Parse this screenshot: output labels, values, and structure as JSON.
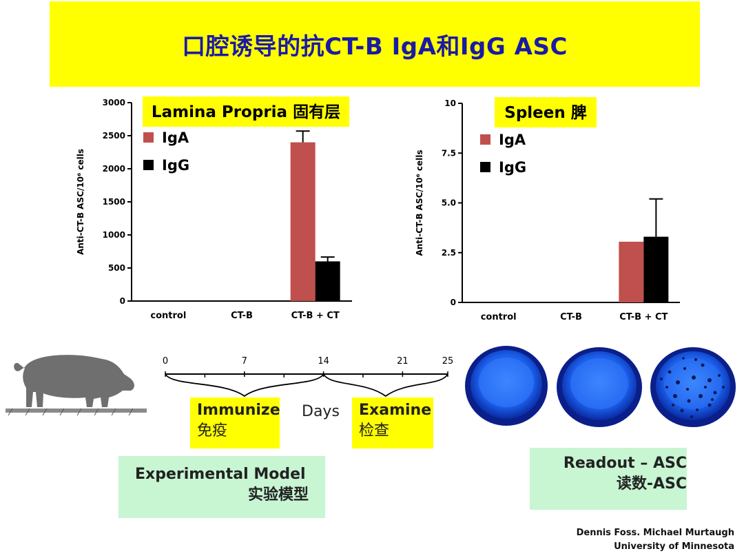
{
  "title": "口腔诱导的抗CT-B IgA和IgG ASC",
  "colors": {
    "iga": "#c0504d",
    "igg": "#000000",
    "banner": "#ffff00",
    "title": "#1a1aa6",
    "green": "#c8f5d2"
  },
  "chart_data": [
    {
      "type": "bar",
      "title": "Lamina Propria 固有层",
      "ylabel": "Anti-CT-B ASC/10⁶ cells",
      "categories": [
        "control",
        "CT-B",
        "CT-B + CT"
      ],
      "ylim": [
        0,
        3000
      ],
      "yticks": [
        0,
        500,
        1000,
        1500,
        2000,
        2500,
        3000
      ],
      "ytick_labels": [
        "0",
        "500",
        "1000",
        "1500",
        "2000",
        "2500",
        "3000"
      ],
      "series": [
        {
          "name": "IgA",
          "values": [
            0,
            0,
            2400
          ],
          "error": [
            0,
            0,
            170
          ]
        },
        {
          "name": "IgG",
          "values": [
            0,
            0,
            600
          ],
          "error": [
            0,
            0,
            65
          ]
        }
      ]
    },
    {
      "type": "bar",
      "title": "Spleen 脾",
      "ylabel": "Anti-CT-B ASC/10⁶ cells",
      "categories": [
        "control",
        "CT-B",
        "CT-B + CT"
      ],
      "ylim": [
        0,
        10
      ],
      "yticks": [
        0,
        2.5,
        5,
        7.5,
        10
      ],
      "ytick_labels": [
        "0",
        "2.5",
        "5.0",
        "7.5",
        "10"
      ],
      "series": [
        {
          "name": "IgA",
          "values": [
            0,
            0,
            3.05
          ]
        },
        {
          "name": "IgG",
          "values": [
            0,
            0,
            3.3
          ],
          "error": [
            0,
            0,
            1.9
          ]
        }
      ]
    }
  ],
  "timeline": {
    "ticks": [
      "0",
      "7",
      "14",
      "21",
      "25"
    ],
    "immunize": {
      "en": "Immunize",
      "zh": "免疫"
    },
    "days": "Days",
    "examine": {
      "en": "Examine",
      "zh": "检查"
    }
  },
  "model_box": {
    "en": "Experimental Model",
    "zh": "实验模型"
  },
  "readout_box": {
    "en": "Readout – ASC",
    "zh": "读数-ASC"
  },
  "credit": {
    "line1": "Dennis Foss. Michael Murtaugh",
    "line2": "University of Minnesota"
  }
}
